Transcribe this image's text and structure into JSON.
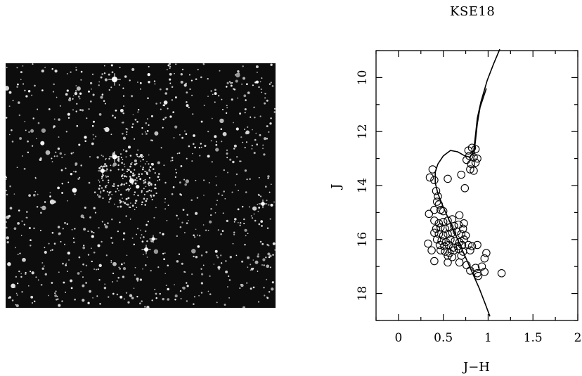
{
  "chart_data": {
    "type": "scatter",
    "title": "KSE18",
    "xlabel": "J−H",
    "ylabel": "J",
    "xlim": [
      -0.25,
      2.0
    ],
    "ylim": [
      19.0,
      9.0
    ],
    "y_inverted": true,
    "x_ticks": [
      "0",
      "0.5",
      "1",
      "1.5",
      "2"
    ],
    "y_ticks": [
      "10",
      "12",
      "14",
      "16",
      "18"
    ],
    "grid": false,
    "marker": "open-circle",
    "isochrone": [
      [
        1.02,
        18.85
      ],
      [
        0.97,
        18.4
      ],
      [
        0.9,
        17.8
      ],
      [
        0.82,
        17.2
      ],
      [
        0.74,
        16.6
      ],
      [
        0.66,
        16.0
      ],
      [
        0.58,
        15.4
      ],
      [
        0.5,
        14.8
      ],
      [
        0.44,
        14.3
      ],
      [
        0.41,
        13.9
      ],
      [
        0.41,
        13.5
      ],
      [
        0.44,
        13.2
      ],
      [
        0.5,
        12.9
      ],
      [
        0.58,
        12.7
      ],
      [
        0.66,
        12.75
      ],
      [
        0.74,
        12.9
      ],
      [
        0.8,
        12.95
      ],
      [
        0.84,
        12.7
      ],
      [
        0.86,
        12.1
      ],
      [
        0.88,
        11.5
      ],
      [
        0.92,
        10.9
      ],
      [
        0.99,
        10.1
      ],
      [
        1.06,
        9.5
      ],
      [
        1.13,
        8.95
      ]
    ],
    "isochrone_rgb": [
      [
        0.84,
        12.9
      ],
      [
        0.86,
        12.3
      ],
      [
        0.88,
        11.7
      ],
      [
        0.91,
        11.1
      ],
      [
        0.95,
        10.7
      ],
      [
        0.98,
        10.4
      ]
    ],
    "points": [
      [
        0.38,
        13.4
      ],
      [
        0.35,
        13.7
      ],
      [
        0.4,
        13.8
      ],
      [
        0.42,
        14.2
      ],
      [
        0.44,
        14.4
      ],
      [
        0.43,
        14.6
      ],
      [
        0.45,
        14.7
      ],
      [
        0.47,
        14.9
      ],
      [
        0.5,
        14.95
      ],
      [
        0.4,
        14.9
      ],
      [
        0.34,
        15.05
      ],
      [
        0.55,
        13.75
      ],
      [
        0.7,
        13.6
      ],
      [
        0.74,
        14.1
      ],
      [
        0.78,
        12.7
      ],
      [
        0.82,
        12.6
      ],
      [
        0.86,
        12.65
      ],
      [
        0.79,
        12.9
      ],
      [
        0.84,
        12.95
      ],
      [
        0.88,
        13.0
      ],
      [
        0.76,
        13.05
      ],
      [
        0.81,
        13.2
      ],
      [
        0.86,
        13.15
      ],
      [
        0.8,
        13.4
      ],
      [
        0.84,
        13.45
      ],
      [
        0.4,
        15.3
      ],
      [
        0.45,
        15.4
      ],
      [
        0.5,
        15.35
      ],
      [
        0.55,
        15.3
      ],
      [
        0.6,
        15.25
      ],
      [
        0.68,
        15.1
      ],
      [
        0.73,
        15.4
      ],
      [
        0.42,
        15.6
      ],
      [
        0.47,
        15.55
      ],
      [
        0.52,
        15.6
      ],
      [
        0.57,
        15.55
      ],
      [
        0.62,
        15.5
      ],
      [
        0.67,
        15.45
      ],
      [
        0.72,
        15.6
      ],
      [
        0.4,
        15.75
      ],
      [
        0.45,
        15.8
      ],
      [
        0.5,
        15.85
      ],
      [
        0.55,
        15.8
      ],
      [
        0.6,
        15.75
      ],
      [
        0.65,
        15.7
      ],
      [
        0.7,
        15.8
      ],
      [
        0.75,
        15.85
      ],
      [
        0.43,
        16.0
      ],
      [
        0.48,
        16.05
      ],
      [
        0.53,
        16.1
      ],
      [
        0.58,
        16.0
      ],
      [
        0.63,
        16.05
      ],
      [
        0.68,
        16.1
      ],
      [
        0.73,
        16.0
      ],
      [
        0.33,
        16.15
      ],
      [
        0.46,
        16.2
      ],
      [
        0.51,
        16.25
      ],
      [
        0.56,
        16.2
      ],
      [
        0.61,
        16.3
      ],
      [
        0.66,
        16.25
      ],
      [
        0.71,
        16.2
      ],
      [
        0.78,
        16.2
      ],
      [
        0.82,
        16.25
      ],
      [
        0.88,
        16.2
      ],
      [
        0.37,
        16.4
      ],
      [
        0.47,
        16.4
      ],
      [
        0.52,
        16.45
      ],
      [
        0.57,
        16.5
      ],
      [
        0.62,
        16.4
      ],
      [
        0.67,
        16.35
      ],
      [
        0.72,
        16.45
      ],
      [
        0.8,
        16.4
      ],
      [
        0.55,
        16.6
      ],
      [
        0.6,
        16.65
      ],
      [
        0.7,
        16.6
      ],
      [
        0.98,
        16.5
      ],
      [
        0.96,
        16.7
      ],
      [
        0.4,
        16.8
      ],
      [
        0.55,
        16.85
      ],
      [
        0.68,
        16.85
      ],
      [
        0.76,
        16.95
      ],
      [
        0.86,
        17.05
      ],
      [
        0.93,
        17.0
      ],
      [
        0.8,
        17.15
      ],
      [
        0.88,
        17.25
      ],
      [
        0.96,
        17.2
      ],
      [
        0.89,
        17.35
      ],
      [
        1.15,
        17.25
      ]
    ]
  }
}
